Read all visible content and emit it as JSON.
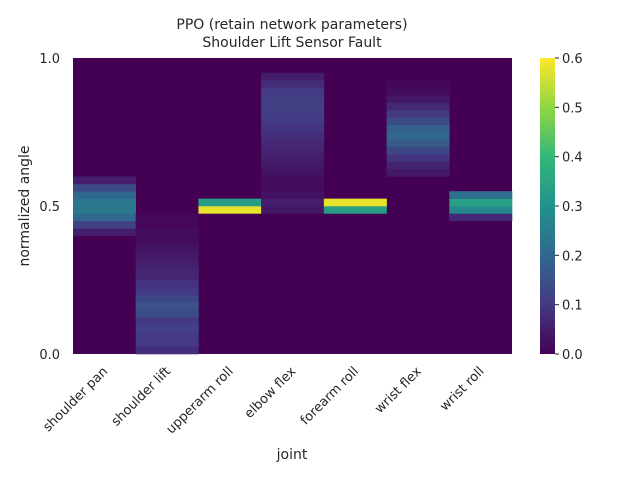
{
  "chart_data": {
    "type": "heatmap",
    "title": "PPO (retain network parameters)",
    "subtitle": "Shoulder Lift Sensor Fault",
    "xlabel": "joint",
    "ylabel": "normalized angle",
    "categories": [
      "shoulder pan",
      "shoulder lift",
      "upperarm roll",
      "elbow flex",
      "forearm roll",
      "wrist flex",
      "wrist roll"
    ],
    "y_ticks": [
      "0.0",
      "0.5",
      "1.0"
    ],
    "ylim": [
      0,
      1
    ],
    "bins": 40,
    "colormap": "viridis",
    "colorbar": {
      "range": [
        0,
        0.6
      ],
      "ticks": [
        "0.0",
        "0.1",
        "0.2",
        "0.3",
        "0.4",
        "0.5",
        "0.6"
      ]
    },
    "series": [
      {
        "values": [
          {
            "bin": [
              0.4,
              0.425
            ],
            "v": 0.05
          },
          {
            "bin": [
              0.425,
              0.45
            ],
            "v": 0.12
          },
          {
            "bin": [
              0.45,
              0.475
            ],
            "v": 0.2
          },
          {
            "bin": [
              0.475,
              0.5
            ],
            "v": 0.24
          },
          {
            "bin": [
              0.5,
              0.525
            ],
            "v": 0.24
          },
          {
            "bin": [
              0.525,
              0.55
            ],
            "v": 0.2
          },
          {
            "bin": [
              0.55,
              0.575
            ],
            "v": 0.13
          },
          {
            "bin": [
              0.575,
              0.6
            ],
            "v": 0.05
          }
        ]
      },
      {
        "values": [
          {
            "bin": [
              0.0,
              0.025
            ],
            "v": 0.08
          },
          {
            "bin": [
              0.025,
              0.05
            ],
            "v": 0.1
          },
          {
            "bin": [
              0.05,
              0.075
            ],
            "v": 0.1
          },
          {
            "bin": [
              0.075,
              0.1
            ],
            "v": 0.12
          },
          {
            "bin": [
              0.1,
              0.125
            ],
            "v": 0.1
          },
          {
            "bin": [
              0.125,
              0.15
            ],
            "v": 0.14
          },
          {
            "bin": [
              0.15,
              0.175
            ],
            "v": 0.15
          },
          {
            "bin": [
              0.175,
              0.2
            ],
            "v": 0.13
          },
          {
            "bin": [
              0.2,
              0.225
            ],
            "v": 0.1
          },
          {
            "bin": [
              0.225,
              0.25
            ],
            "v": 0.09
          },
          {
            "bin": [
              0.25,
              0.275
            ],
            "v": 0.07
          },
          {
            "bin": [
              0.275,
              0.3
            ],
            "v": 0.06
          },
          {
            "bin": [
              0.3,
              0.325
            ],
            "v": 0.05
          },
          {
            "bin": [
              0.325,
              0.35
            ],
            "v": 0.04
          },
          {
            "bin": [
              0.35,
              0.375
            ],
            "v": 0.03
          },
          {
            "bin": [
              0.375,
              0.4
            ],
            "v": 0.02
          },
          {
            "bin": [
              0.4,
              0.425
            ],
            "v": 0.02
          },
          {
            "bin": [
              0.425,
              0.45
            ],
            "v": 0.01
          },
          {
            "bin": [
              0.45,
              0.475
            ],
            "v": 0.01
          }
        ]
      },
      {
        "values": [
          {
            "bin": [
              0.475,
              0.5
            ],
            "v": 0.58
          },
          {
            "bin": [
              0.5,
              0.525
            ],
            "v": 0.33
          }
        ]
      },
      {
        "values": [
          {
            "bin": [
              0.475,
              0.5
            ],
            "v": 0.04
          },
          {
            "bin": [
              0.5,
              0.525
            ],
            "v": 0.05
          },
          {
            "bin": [
              0.525,
              0.55
            ],
            "v": 0.03
          },
          {
            "bin": [
              0.55,
              0.575
            ],
            "v": 0.02
          },
          {
            "bin": [
              0.575,
              0.6
            ],
            "v": 0.02
          },
          {
            "bin": [
              0.6,
              0.625
            ],
            "v": 0.03
          },
          {
            "bin": [
              0.625,
              0.65
            ],
            "v": 0.04
          },
          {
            "bin": [
              0.65,
              0.675
            ],
            "v": 0.05
          },
          {
            "bin": [
              0.675,
              0.7
            ],
            "v": 0.06
          },
          {
            "bin": [
              0.7,
              0.725
            ],
            "v": 0.07
          },
          {
            "bin": [
              0.725,
              0.75
            ],
            "v": 0.08
          },
          {
            "bin": [
              0.75,
              0.775
            ],
            "v": 0.09
          },
          {
            "bin": [
              0.775,
              0.8
            ],
            "v": 0.1
          },
          {
            "bin": [
              0.8,
              0.825
            ],
            "v": 0.11
          },
          {
            "bin": [
              0.825,
              0.85
            ],
            "v": 0.12
          },
          {
            "bin": [
              0.85,
              0.875
            ],
            "v": 0.11
          },
          {
            "bin": [
              0.875,
              0.9
            ],
            "v": 0.1
          },
          {
            "bin": [
              0.9,
              0.925
            ],
            "v": 0.08
          },
          {
            "bin": [
              0.925,
              0.95
            ],
            "v": 0.05
          }
        ]
      },
      {
        "values": [
          {
            "bin": [
              0.475,
              0.5
            ],
            "v": 0.33
          },
          {
            "bin": [
              0.5,
              0.525
            ],
            "v": 0.58
          }
        ]
      },
      {
        "values": [
          {
            "bin": [
              0.6,
              0.625
            ],
            "v": 0.04
          },
          {
            "bin": [
              0.625,
              0.65
            ],
            "v": 0.06
          },
          {
            "bin": [
              0.65,
              0.675
            ],
            "v": 0.09
          },
          {
            "bin": [
              0.675,
              0.7
            ],
            "v": 0.13
          },
          {
            "bin": [
              0.7,
              0.725
            ],
            "v": 0.17
          },
          {
            "bin": [
              0.725,
              0.75
            ],
            "v": 0.2
          },
          {
            "bin": [
              0.75,
              0.775
            ],
            "v": 0.18
          },
          {
            "bin": [
              0.775,
              0.8
            ],
            "v": 0.14
          },
          {
            "bin": [
              0.8,
              0.825
            ],
            "v": 0.1
          },
          {
            "bin": [
              0.825,
              0.85
            ],
            "v": 0.07
          },
          {
            "bin": [
              0.85,
              0.875
            ],
            "v": 0.04
          },
          {
            "bin": [
              0.875,
              0.9
            ],
            "v": 0.02
          },
          {
            "bin": [
              0.9,
              0.925
            ],
            "v": 0.01
          }
        ]
      },
      {
        "values": [
          {
            "bin": [
              0.45,
              0.475
            ],
            "v": 0.07
          },
          {
            "bin": [
              0.475,
              0.5
            ],
            "v": 0.28
          },
          {
            "bin": [
              0.5,
              0.525
            ],
            "v": 0.34
          },
          {
            "bin": [
              0.525,
              0.55
            ],
            "v": 0.22
          }
        ]
      }
    ]
  }
}
